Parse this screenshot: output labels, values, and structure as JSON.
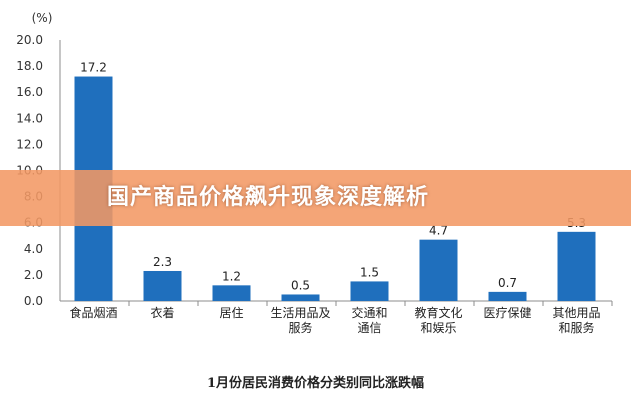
{
  "chart_data": {
    "type": "bar",
    "unit_label": "(%)",
    "categories": [
      [
        "食品烟酒"
      ],
      [
        "衣着"
      ],
      [
        "居住"
      ],
      [
        "生活用品及",
        "服务"
      ],
      [
        "交通和",
        "通信"
      ],
      [
        "教育文化",
        "和娱乐"
      ],
      [
        "医疗保健"
      ],
      [
        "其他用品",
        "和服务"
      ]
    ],
    "values": [
      17.2,
      2.3,
      1.2,
      0.5,
      1.5,
      4.7,
      0.7,
      5.3
    ],
    "value_labels": [
      "17.2",
      "2.3",
      "1.2",
      "0.5",
      "1.5",
      "4.7",
      "0.7",
      "5.3"
    ],
    "ylim": [
      0,
      20
    ],
    "yticks": [
      "0.0",
      "2.0",
      "4.0",
      "6.0",
      "8.0",
      "10.0",
      "12.0",
      "14.0",
      "16.0",
      "18.0",
      "20.0"
    ],
    "bar_color": "#1f6fbd",
    "caption": "1月份居民消费价格分类别同比涨跌幅",
    "grid": false
  },
  "banner": {
    "text": "国产商品价格飙升现象深度解析",
    "color": "#f29864"
  }
}
